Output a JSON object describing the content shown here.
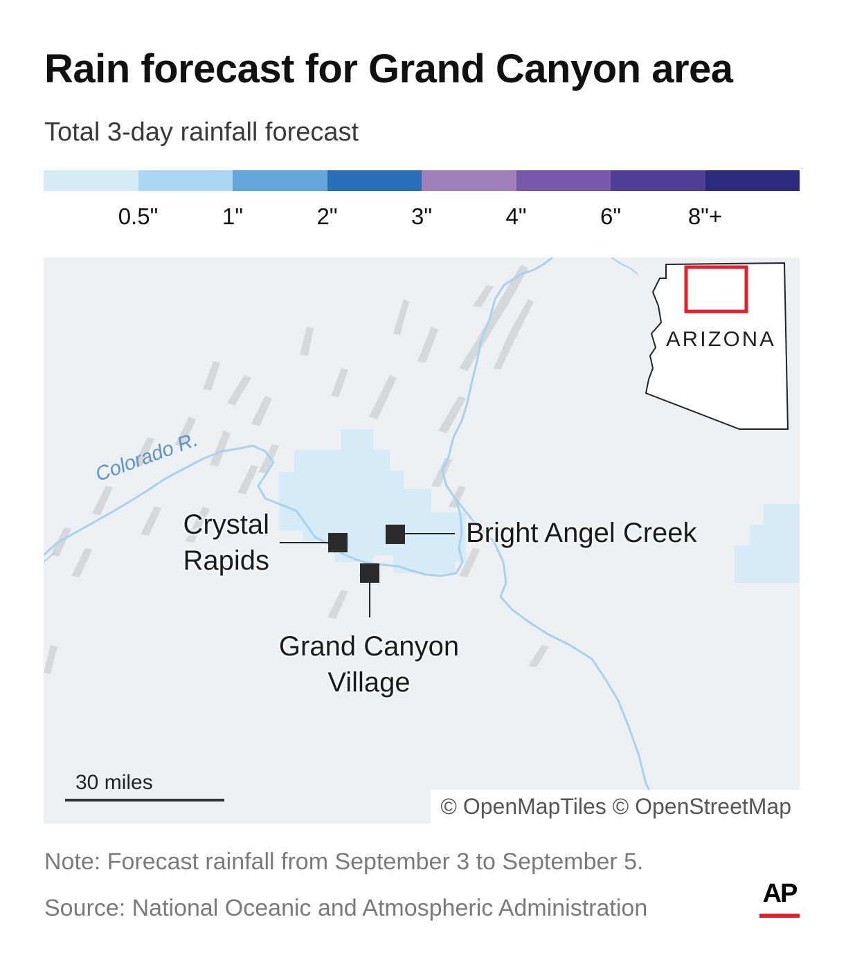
{
  "header": {
    "title": "Rain forecast for Grand Canyon area",
    "subtitle": "Total 3-day rainfall forecast"
  },
  "legend": {
    "colors": [
      "#d5ecf8",
      "#acd7f2",
      "#64a5da",
      "#2a70b8",
      "#a07fba",
      "#7758a9",
      "#503e98",
      "#2d2a7d"
    ],
    "labels": [
      "0.5\"",
      "1\"",
      "2\"",
      "3\"",
      "4\"",
      "6\"",
      "8\"+"
    ]
  },
  "map": {
    "river_label": "Colorado R.",
    "places": {
      "crystal_rapids": "Crystal\nRapids",
      "bright_angel_creek": "Bright Angel Creek",
      "grand_canyon_village": "Grand Canyon\nVillage"
    },
    "scale_label": "30 miles",
    "credit": "© OpenMapTiles © OpenStreetMap",
    "inset_label": "ARIZONA",
    "colors": {
      "land": "#ecf0f2",
      "terrain": "#d3d6d8",
      "river": "#a9d1ec",
      "rain_light": "#d5ecf8",
      "inset_box": "#e2212a"
    }
  },
  "footer": {
    "note": "Note: Forecast rainfall from September 3 to September 5.",
    "source": "Source: National Oceanic and Atmospheric Administration",
    "logo": "AP"
  }
}
